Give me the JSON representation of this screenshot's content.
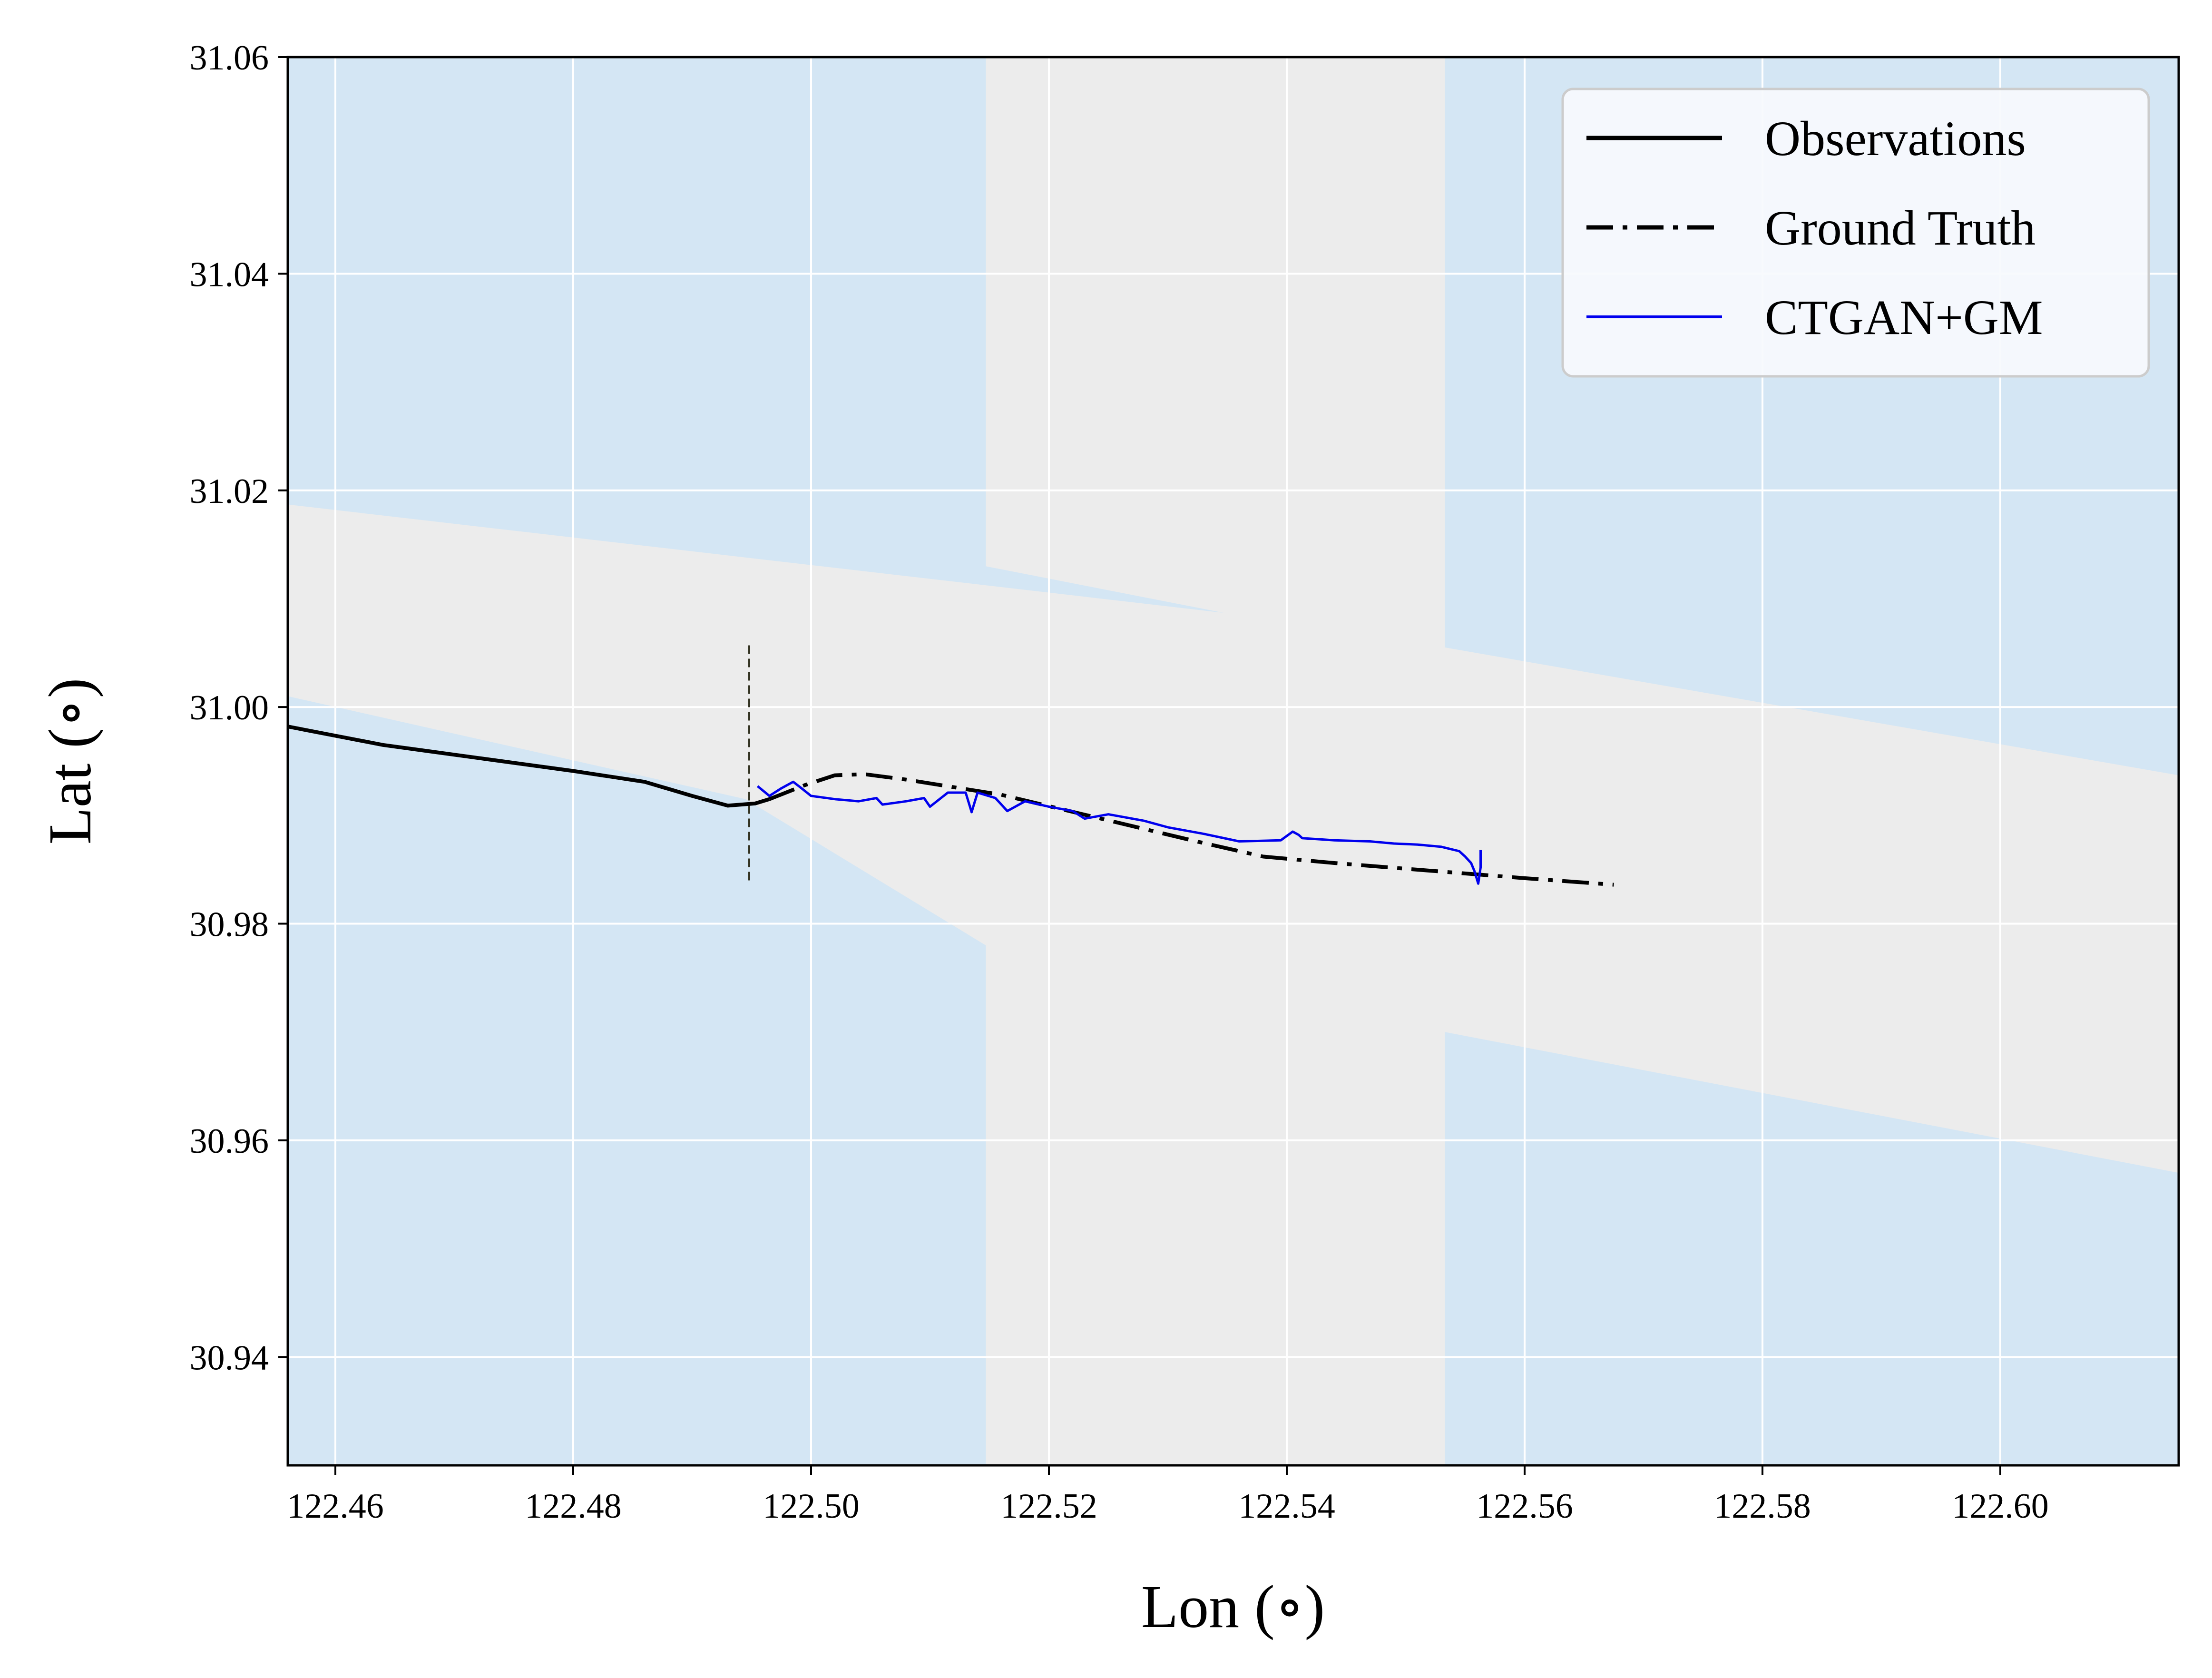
{
  "chart_data": {
    "type": "line",
    "title": "",
    "xlabel": "Lon (∘)",
    "ylabel": "Lat (∘)",
    "xlim": [
      122.456,
      122.615
    ],
    "ylim": [
      30.93,
      31.06
    ],
    "xticks": [
      122.46,
      122.48,
      122.5,
      122.52,
      122.54,
      122.56,
      122.58,
      122.6
    ],
    "xtick_labels": [
      "122.46",
      "122.48",
      "122.50",
      "122.52",
      "122.54",
      "122.56",
      "122.58",
      "122.60"
    ],
    "yticks": [
      30.94,
      30.96,
      30.98,
      31.0,
      31.02,
      31.04,
      31.06
    ],
    "ytick_labels": [
      "30.94",
      "30.96",
      "30.98",
      "31.00",
      "31.02",
      "31.04",
      "31.06"
    ],
    "grid": true,
    "legend_position": "top-right",
    "background": {
      "water_color": "#d4e6f4",
      "land_color": "#ececec",
      "water_regions": [
        [
          [
            122.456,
            31.06
          ],
          [
            122.5147,
            31.06
          ],
          [
            122.5147,
            31.013
          ],
          [
            122.5347,
            31.0087
          ],
          [
            122.456,
            31.0187
          ]
        ],
        [
          [
            122.5533,
            31.06
          ],
          [
            122.615,
            31.06
          ],
          [
            122.615,
            30.9937
          ],
          [
            122.5533,
            31.0055
          ]
        ],
        [
          [
            122.456,
            31.001
          ],
          [
            122.4945,
            30.9915
          ],
          [
            122.5147,
            30.978
          ],
          [
            122.5147,
            30.93
          ],
          [
            122.456,
            30.93
          ]
        ],
        [
          [
            122.5533,
            30.97
          ],
          [
            122.615,
            30.957
          ],
          [
            122.615,
            30.93
          ],
          [
            122.5533,
            30.93
          ]
        ]
      ]
    },
    "reference_line": {
      "x": 122.4948,
      "y_range": [
        30.984,
        31.0058
      ],
      "color": "#333322"
    },
    "series": [
      {
        "name": "Observations",
        "style": "solid",
        "color": "#000000",
        "points": [
          [
            122.456,
            30.9982
          ],
          [
            122.464,
            30.9965
          ],
          [
            122.472,
            30.9953
          ],
          [
            122.48,
            30.9941
          ],
          [
            122.486,
            30.9931
          ],
          [
            122.49,
            30.9918
          ],
          [
            122.493,
            30.9909
          ],
          [
            122.4953,
            30.9911
          ],
          [
            122.4965,
            30.9915
          ]
        ]
      },
      {
        "name": "Ground Truth",
        "style": "dashdot",
        "color": "#000000",
        "points": [
          [
            122.4965,
            30.9915
          ],
          [
            122.4995,
            30.9928
          ],
          [
            122.502,
            30.9937
          ],
          [
            122.5045,
            30.9938
          ],
          [
            122.508,
            30.9933
          ],
          [
            122.516,
            30.9919
          ],
          [
            122.524,
            30.9898
          ],
          [
            122.532,
            30.9877
          ],
          [
            122.538,
            30.9862
          ],
          [
            122.544,
            30.9856
          ],
          [
            122.552,
            30.9849
          ],
          [
            122.56,
            30.9842
          ],
          [
            122.5675,
            30.9836
          ]
        ]
      },
      {
        "name": "CTGAN+GM",
        "style": "solid",
        "color": "#0000ee",
        "points": [
          [
            122.4955,
            30.9927
          ],
          [
            122.4965,
            30.9918
          ],
          [
            122.4975,
            30.9925
          ],
          [
            122.4985,
            30.9931
          ],
          [
            122.4992,
            30.9925
          ],
          [
            122.5,
            30.9918
          ],
          [
            122.502,
            30.9915
          ],
          [
            122.504,
            30.9913
          ],
          [
            122.5055,
            30.9916
          ],
          [
            122.506,
            30.991
          ],
          [
            122.508,
            30.9913
          ],
          [
            122.5095,
            30.9916
          ],
          [
            122.51,
            30.9908
          ],
          [
            122.5115,
            30.9921
          ],
          [
            122.513,
            30.9921
          ],
          [
            122.5135,
            30.9903
          ],
          [
            122.514,
            30.9921
          ],
          [
            122.5155,
            30.9916
          ],
          [
            122.5165,
            30.9904
          ],
          [
            122.518,
            30.9913
          ],
          [
            122.52,
            30.9908
          ],
          [
            122.522,
            30.9904
          ],
          [
            122.523,
            30.9897
          ],
          [
            122.525,
            30.9901
          ],
          [
            122.528,
            30.9895
          ],
          [
            122.53,
            30.9889
          ],
          [
            122.533,
            30.9883
          ],
          [
            122.536,
            30.9876
          ],
          [
            122.5395,
            30.9877
          ],
          [
            122.5405,
            30.9885
          ],
          [
            122.541,
            30.9882
          ],
          [
            122.5413,
            30.9879
          ],
          [
            122.544,
            30.9877
          ],
          [
            122.547,
            30.9876
          ],
          [
            122.549,
            30.9874
          ],
          [
            122.551,
            30.9873
          ],
          [
            122.553,
            30.9871
          ],
          [
            122.5545,
            30.9867
          ],
          [
            122.555,
            30.9862
          ],
          [
            122.5555,
            30.9856
          ],
          [
            122.5558,
            30.9848
          ],
          [
            122.5561,
            30.9837
          ],
          [
            122.5563,
            30.9852
          ],
          [
            122.5563,
            30.9868
          ]
        ]
      }
    ]
  }
}
